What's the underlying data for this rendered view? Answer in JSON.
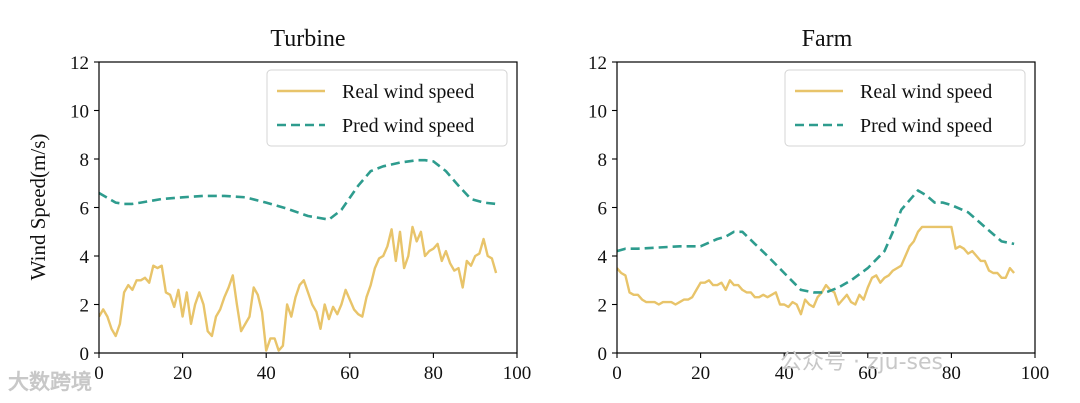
{
  "chart_data": [
    {
      "type": "line",
      "title": "Turbine",
      "xlabel": "",
      "ylabel": "Wind Speed(m/s)",
      "xlim": [
        0,
        100
      ],
      "ylim": [
        0,
        12
      ],
      "xticks": [
        "0",
        "20",
        "40",
        "60",
        "80",
        "100"
      ],
      "yticks": [
        "0",
        "2",
        "4",
        "6",
        "8",
        "10",
        "12"
      ],
      "legend_position": "top-right",
      "series": [
        {
          "name": "Real wind speed",
          "style": "solid",
          "color": "#e8c46a",
          "x": [
            0,
            1,
            2,
            3,
            4,
            5,
            6,
            7,
            8,
            9,
            10,
            11,
            12,
            13,
            14,
            15,
            16,
            17,
            18,
            19,
            20,
            21,
            22,
            23,
            24,
            25,
            26,
            27,
            28,
            29,
            30,
            31,
            32,
            33,
            34,
            35,
            36,
            37,
            38,
            39,
            40,
            41,
            42,
            43,
            44,
            45,
            46,
            47,
            48,
            49,
            50,
            51,
            52,
            53,
            54,
            55,
            56,
            57,
            58,
            59,
            60,
            61,
            62,
            63,
            64,
            65,
            66,
            67,
            68,
            69,
            70,
            71,
            72,
            73,
            74,
            75,
            76,
            77,
            78,
            79,
            80,
            81,
            82,
            83,
            84,
            85,
            86,
            87,
            88,
            89,
            90,
            91,
            92,
            93,
            94,
            95
          ],
          "values": [
            1.5,
            1.8,
            1.5,
            1.0,
            0.7,
            1.2,
            2.5,
            2.8,
            2.6,
            3.0,
            3.0,
            3.1,
            2.9,
            3.6,
            3.5,
            3.6,
            2.5,
            2.4,
            1.9,
            2.6,
            1.5,
            2.5,
            1.2,
            2.0,
            2.5,
            2.0,
            0.9,
            0.7,
            1.5,
            1.8,
            2.3,
            2.7,
            3.2,
            2.0,
            0.9,
            1.2,
            1.5,
            2.7,
            2.4,
            1.7,
            0.1,
            0.6,
            0.6,
            0.1,
            0.3,
            2.0,
            1.5,
            2.3,
            2.8,
            3.0,
            2.5,
            2.0,
            1.7,
            1.0,
            2.0,
            1.4,
            1.9,
            1.6,
            2.0,
            2.6,
            2.2,
            1.8,
            1.6,
            1.5,
            2.3,
            2.8,
            3.5,
            3.9,
            4.0,
            4.4,
            5.1,
            3.8,
            5.0,
            3.5,
            4.0,
            5.2,
            4.6,
            5.0,
            4.0,
            4.2,
            4.3,
            4.5,
            3.8,
            4.2,
            3.7,
            3.4,
            3.5,
            2.7,
            3.8,
            3.6,
            4.0,
            4.1,
            4.7,
            4.0,
            3.9,
            3.3
          ]
        },
        {
          "name": "Pred wind speed",
          "style": "dashed",
          "color": "#2e9c8e",
          "x": [
            0,
            2,
            4,
            6,
            8,
            10,
            15,
            20,
            25,
            30,
            35,
            40,
            45,
            50,
            55,
            58,
            62,
            65,
            68,
            72,
            76,
            78,
            80,
            83,
            86,
            89,
            92,
            95
          ],
          "values": [
            6.6,
            6.4,
            6.2,
            6.15,
            6.15,
            6.2,
            6.35,
            6.42,
            6.48,
            6.48,
            6.42,
            6.2,
            5.95,
            5.65,
            5.5,
            5.9,
            6.9,
            7.5,
            7.7,
            7.85,
            7.95,
            7.95,
            7.9,
            7.5,
            6.9,
            6.35,
            6.2,
            6.15
          ]
        }
      ]
    },
    {
      "type": "line",
      "title": "Farm",
      "xlabel": "",
      "ylabel": "",
      "xlim": [
        0,
        100
      ],
      "ylim": [
        0,
        12
      ],
      "xticks": [
        "0",
        "20",
        "40",
        "60",
        "80",
        "100"
      ],
      "yticks": [
        "0",
        "2",
        "4",
        "6",
        "8",
        "10",
        "12"
      ],
      "legend_position": "top-right",
      "series": [
        {
          "name": "Real wind speed",
          "style": "solid",
          "color": "#e8c46a",
          "x": [
            0,
            1,
            2,
            3,
            4,
            5,
            6,
            7,
            8,
            9,
            10,
            11,
            12,
            13,
            14,
            15,
            16,
            17,
            18,
            19,
            20,
            21,
            22,
            23,
            24,
            25,
            26,
            27,
            28,
            29,
            30,
            31,
            32,
            33,
            34,
            35,
            36,
            37,
            38,
            39,
            40,
            41,
            42,
            43,
            44,
            45,
            46,
            47,
            48,
            49,
            50,
            51,
            52,
            53,
            54,
            55,
            56,
            57,
            58,
            59,
            60,
            61,
            62,
            63,
            64,
            65,
            66,
            67,
            68,
            69,
            70,
            71,
            72,
            73,
            74,
            75,
            76,
            77,
            78,
            79,
            80,
            81,
            82,
            83,
            84,
            85,
            86,
            87,
            88,
            89,
            90,
            91,
            92,
            93,
            94,
            95
          ],
          "values": [
            3.5,
            3.3,
            3.2,
            2.5,
            2.4,
            2.4,
            2.2,
            2.1,
            2.1,
            2.1,
            2.0,
            2.1,
            2.1,
            2.1,
            2.0,
            2.1,
            2.2,
            2.2,
            2.3,
            2.6,
            2.9,
            2.9,
            3.0,
            2.8,
            2.8,
            2.9,
            2.6,
            3.0,
            2.8,
            2.8,
            2.6,
            2.5,
            2.5,
            2.3,
            2.3,
            2.4,
            2.3,
            2.4,
            2.5,
            2.0,
            2.0,
            1.9,
            2.1,
            2.0,
            1.6,
            2.2,
            2.0,
            1.9,
            2.3,
            2.5,
            2.8,
            2.6,
            2.5,
            2.0,
            2.2,
            2.4,
            2.1,
            2.0,
            2.4,
            2.2,
            2.7,
            3.1,
            3.2,
            2.9,
            3.1,
            3.2,
            3.4,
            3.5,
            3.6,
            4.0,
            4.4,
            4.6,
            5.0,
            5.2,
            5.2,
            5.2,
            5.2,
            5.2,
            5.2,
            5.2,
            5.2,
            4.3,
            4.4,
            4.3,
            4.1,
            4.2,
            4.0,
            3.8,
            3.8,
            3.4,
            3.3,
            3.3,
            3.1,
            3.1,
            3.5,
            3.3
          ]
        },
        {
          "name": "Pred wind speed",
          "style": "dashed",
          "color": "#2e9c8e",
          "x": [
            0,
            2,
            5,
            10,
            15,
            20,
            24,
            26,
            28,
            30,
            33,
            36,
            40,
            44,
            47,
            50,
            53,
            56,
            60,
            64,
            66,
            68,
            70,
            72,
            74,
            76,
            78,
            80,
            84,
            88,
            92,
            95
          ],
          "values": [
            4.2,
            4.3,
            4.3,
            4.35,
            4.4,
            4.4,
            4.7,
            4.8,
            5.0,
            5.0,
            4.5,
            4.0,
            3.3,
            2.6,
            2.5,
            2.5,
            2.7,
            3.0,
            3.5,
            4.2,
            5.0,
            5.9,
            6.3,
            6.7,
            6.5,
            6.2,
            6.2,
            6.1,
            5.8,
            5.2,
            4.6,
            4.5
          ]
        }
      ]
    }
  ],
  "watermarks": {
    "left": "大数跨境",
    "right": "公众号 · zju-ses"
  }
}
